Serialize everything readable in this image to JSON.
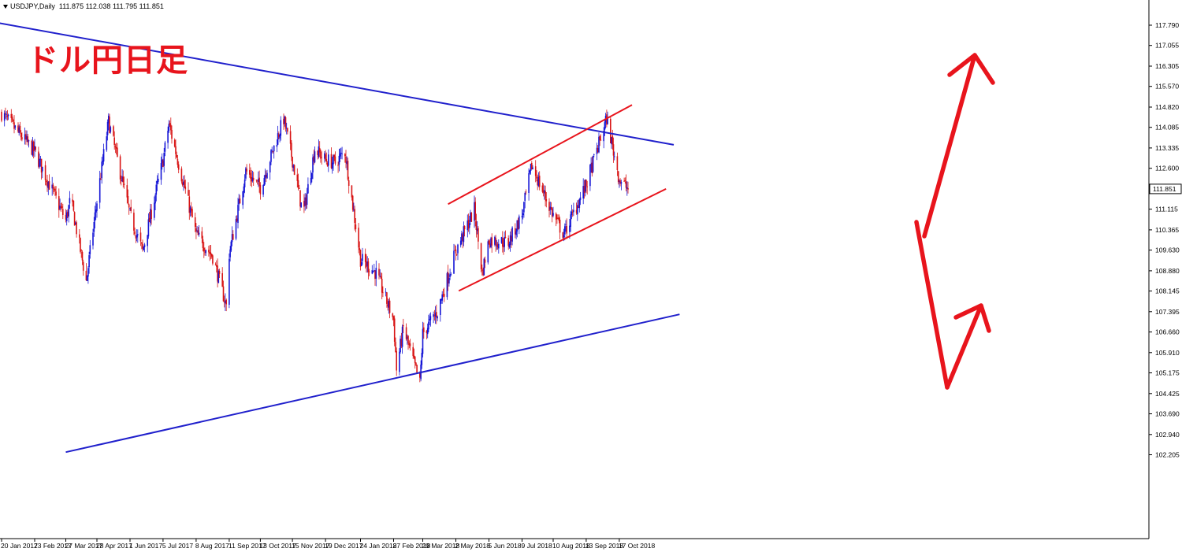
{
  "header": {
    "symbol": "USDJPY,Daily",
    "ohlc": "111.875 112.038 111.795 111.851"
  },
  "title": "ドル円日足",
  "current_price": "111.851",
  "colors": {
    "bull": "#1515d6",
    "bear": "#d81414",
    "trendline": "#2020cc",
    "channel": "#e8141c",
    "arrow": "#e8141c"
  },
  "chart_data": {
    "type": "candlestick",
    "x_tick_labels": [
      "20 Jan 2017",
      "23 Feb 2017",
      "27 Mar 2017",
      "28 Apr 2017",
      "1 Jun 2017",
      "5 Jul 2017",
      "8 Aug 2017",
      "11 Sep 2017",
      "13 Oct 2017",
      "15 Nov 2017",
      "19 Dec 2017",
      "24 Jan 2018",
      "27 Feb 2018",
      "29 Mar 2018",
      "2 May 2018",
      "5 Jun 2018",
      "9 Jul 2018",
      "10 Aug 2018",
      "13 Sep 2018",
      "17 Oct 2018"
    ],
    "y_tick_labels": [
      "117.790",
      "117.055",
      "116.305",
      "115.570",
      "114.820",
      "114.085",
      "113.335",
      "112.600",
      "111.115",
      "110.365",
      "109.630",
      "108.880",
      "108.145",
      "107.395",
      "106.660",
      "105.910",
      "105.175",
      "104.425",
      "103.690",
      "102.940",
      "102.205"
    ],
    "ylim": [
      102.2,
      118.0
    ],
    "path_close": [
      [
        "20 Jan 2017",
        114.6
      ],
      [
        "23 Feb 2017",
        113.2
      ],
      [
        "27 Mar 2017",
        110.7
      ],
      [
        "1 Apr 2017",
        111.5
      ],
      [
        "17 Apr 2017",
        108.5
      ],
      [
        "28 Apr 2017",
        111.4
      ],
      [
        "10 May 2017",
        114.3
      ],
      [
        "1 Jun 2017",
        110.9
      ],
      [
        "14 Jun 2017",
        109.6
      ],
      [
        "5 Jul 2017",
        112.9
      ],
      [
        "11 Jul 2017",
        114.2
      ],
      [
        "8 Aug 2017",
        110.2
      ],
      [
        "25 Aug 2017",
        109.4
      ],
      [
        "8 Sep 2017",
        107.6
      ],
      [
        "11 Sep 2017",
        109.5
      ],
      [
        "28 Sep 2017",
        112.5
      ],
      [
        "13 Oct 2017",
        111.9
      ],
      [
        "6 Nov 2017",
        114.4
      ],
      [
        "15 Nov 2017",
        112.9
      ],
      [
        "26 Nov 2017",
        110.9
      ],
      [
        "8 Dec 2017",
        113.3
      ],
      [
        "19 Dec 2017",
        112.9
      ],
      [
        "29 Dec 2017",
        112.8
      ],
      [
        "8 Jan 2018",
        113.2
      ],
      [
        "24 Jan 2018",
        109.3
      ],
      [
        "9 Feb 2018",
        108.8
      ],
      [
        "27 Feb 2018",
        107.1
      ],
      [
        "2 Mar 2018",
        105.3
      ],
      [
        "9 Mar 2018",
        106.8
      ],
      [
        "26 Mar 2018",
        104.8
      ],
      [
        "29 Mar 2018",
        106.6
      ],
      [
        "13 Apr 2018",
        107.4
      ],
      [
        "2 May 2018",
        109.6
      ],
      [
        "21 May 2018",
        111.1
      ],
      [
        "29 May 2018",
        108.8
      ],
      [
        "5 Jun 2018",
        110.0
      ],
      [
        "25 Jun 2018",
        109.9
      ],
      [
        "9 Jul 2018",
        110.9
      ],
      [
        "19 Jul 2018",
        112.7
      ],
      [
        "10 Aug 2018",
        110.9
      ],
      [
        "21 Aug 2018",
        110.2
      ],
      [
        "13 Sep 2018",
        112.0
      ],
      [
        "4 Oct 2018",
        114.4
      ],
      [
        "17 Oct 2018",
        112.2
      ],
      [
        "26 Oct 2018",
        111.85
      ]
    ],
    "upper_trendline": [
      [
        "28 Dec 2016",
        118.0
      ],
      [
        "12 Dec 2018",
        113.45
      ]
    ],
    "lower_trendline": [
      [
        "27 Mar 2017",
        102.3
      ],
      [
        "18 Dec 2018",
        107.3
      ]
    ],
    "channel_upper": [
      [
        "24 Apr 2018",
        111.3
      ],
      [
        "30 Oct 2018",
        114.9
      ]
    ],
    "channel_lower": [
      [
        "5 May 2018",
        108.15
      ],
      [
        "4 Dec 2018",
        111.85
      ]
    ]
  }
}
